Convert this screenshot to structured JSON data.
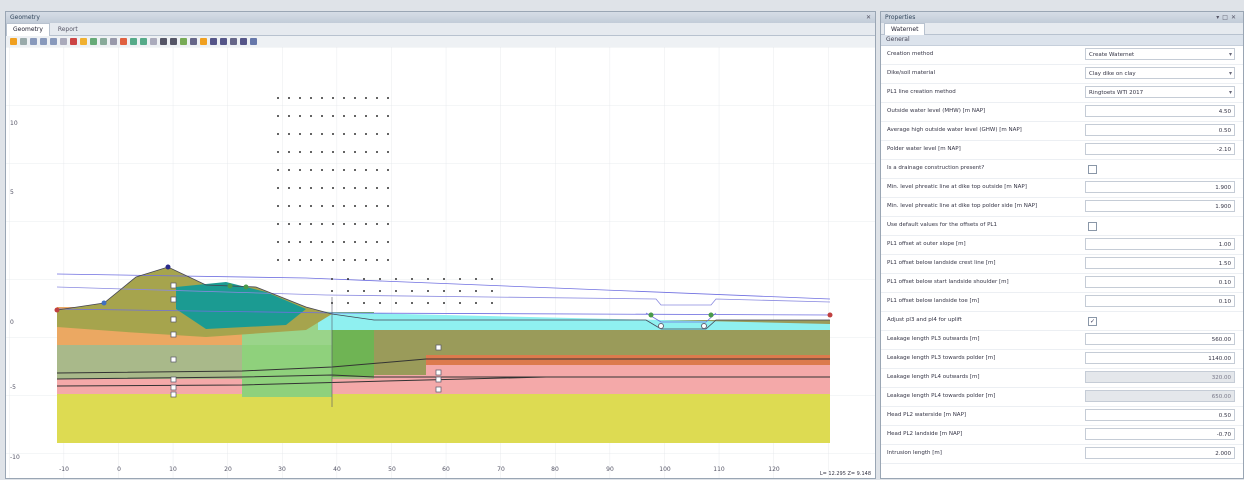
{
  "geometry_window": {
    "title": "Geometry",
    "close_icon": "close-icon",
    "tabs": [
      {
        "label": "Geometry"
      },
      {
        "label": "Report"
      }
    ],
    "status_text": "L= 12.295  Z= 9.148",
    "x_ticks": [
      "-10",
      "0",
      "10",
      "20",
      "30",
      "40",
      "50",
      "60",
      "70",
      "80",
      "90",
      "100",
      "110",
      "120"
    ],
    "y_ticks": [
      "10",
      "5",
      "0",
      "-5",
      "-10"
    ],
    "colors": {
      "clay_dike": "#a6a44d",
      "dike_core": "#1b9b92",
      "orange_layer": "#eba862",
      "light_green": "#a9b98a",
      "sand": "#dddb52",
      "pink": "#f4a9a9",
      "brown_orange": "#dc7a4d",
      "olive_ground": "#9a9b5a",
      "water_cyan": "#8ff0f0",
      "bright_green": "#8fd17c"
    }
  },
  "properties_window": {
    "title": "Properties",
    "tab": "Waternet",
    "section": "General",
    "rows": [
      {
        "label": "Creation method",
        "value": "Create Waternet",
        "type": "select"
      },
      {
        "label": "Dike/soil material",
        "value": "Clay dike on clay",
        "type": "select"
      },
      {
        "label": "PL1 line creation method",
        "value": "Ringtoets WTI 2017",
        "type": "select"
      },
      {
        "label": "Outside water level (MHW) [m NAP]",
        "value": "4.50",
        "type": "number"
      },
      {
        "label": "Average high outside water level (GHW) [m NAP]",
        "value": "0.50",
        "type": "number"
      },
      {
        "label": "Polder water level [m NAP]",
        "value": "-2.10",
        "type": "number"
      },
      {
        "label": "Is a drainage construction present?",
        "value": "",
        "type": "check",
        "checked": false
      },
      {
        "label": "Min. level phreatic line at dike top outside [m NAP]",
        "value": "1.900",
        "type": "number"
      },
      {
        "label": "Min. level phreatic line at dike top polder side [m NAP]",
        "value": "1.900",
        "type": "number"
      },
      {
        "label": "Use default values for the offsets of PL1",
        "value": "",
        "type": "check",
        "checked": false
      },
      {
        "label": "PL1 offset at outer slope [m]",
        "value": "1.00",
        "type": "number"
      },
      {
        "label": "PL1 offset below landside crest line [m]",
        "value": "1.50",
        "type": "number"
      },
      {
        "label": "PL1 offset below start landside shoulder [m]",
        "value": "0.10",
        "type": "number"
      },
      {
        "label": "PL1 offset below landside toe [m]",
        "value": "0.10",
        "type": "number"
      },
      {
        "label": "Adjust pl3 and pl4 for uplift",
        "value": "",
        "type": "check",
        "checked": true
      },
      {
        "label": "Leakage length PL3 outwards [m]",
        "value": "560.00",
        "type": "number"
      },
      {
        "label": "Leakage length PL3 towards polder [m]",
        "value": "1140.00",
        "type": "number"
      },
      {
        "label": "Leakage length PL4 outwards [m]",
        "value": "320.00",
        "type": "disabled"
      },
      {
        "label": "Leakage length PL4 towards polder [m]",
        "value": "650.00",
        "type": "disabled"
      },
      {
        "label": "Head PL2 waterside [m NAP]",
        "value": "0.50",
        "type": "number"
      },
      {
        "label": "Head PL2 landside [m NAP]",
        "value": "-0.70",
        "type": "number"
      },
      {
        "label": "Intrusion length [m]",
        "value": "2.000",
        "type": "number"
      }
    ]
  }
}
